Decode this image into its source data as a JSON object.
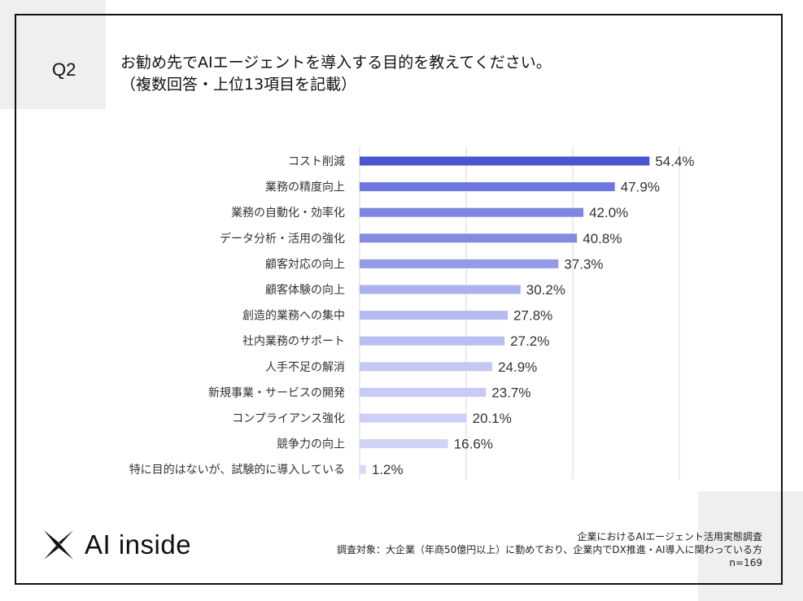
{
  "question": {
    "number": "Q2",
    "title_line1": "お勧め先でAIエージェントを導入する目的を教えてください。",
    "title_line2": "（複数回答・上位13項目を記載）"
  },
  "chart_data": {
    "type": "bar",
    "orientation": "horizontal",
    "title": "",
    "xlabel": "",
    "ylabel": "",
    "xlim": [
      0,
      60
    ],
    "grid": true,
    "value_suffix": "%",
    "categories": [
      "コスト削減",
      "業務の精度向上",
      "業務の自動化・効率化",
      "データ分析・活用の強化",
      "顧客対応の向上",
      "顧客体験の向上",
      "創造的業務への集中",
      "社内業務のサポート",
      "人手不足の解消",
      "新規事業・サービスの開発",
      "コンプライアンス強化",
      "競争力の向上",
      "特に目的はないが、試験的に導入している"
    ],
    "values": [
      54.4,
      47.9,
      42.0,
      40.8,
      37.3,
      30.2,
      27.8,
      27.2,
      24.9,
      23.7,
      20.1,
      16.6,
      1.2
    ],
    "colors": [
      "#4b55d2",
      "#6c76dc",
      "#7c86e0",
      "#838ce2",
      "#959ce6",
      "#abb1ec",
      "#b6bbef",
      "#babef0",
      "#c4c8f2",
      "#c7cbf3",
      "#cdd0f4",
      "#d0d3f5",
      "#d8dbf7"
    ]
  },
  "footer": {
    "survey_name": "企業におけるAIエージェント活用実態調査",
    "target": "調査対象：大企業（年商50億円以上）に勤めており、企業内でDX推進・AI導入に関わっている方",
    "sample": "n=169"
  },
  "logo": {
    "text": "AI inside"
  }
}
